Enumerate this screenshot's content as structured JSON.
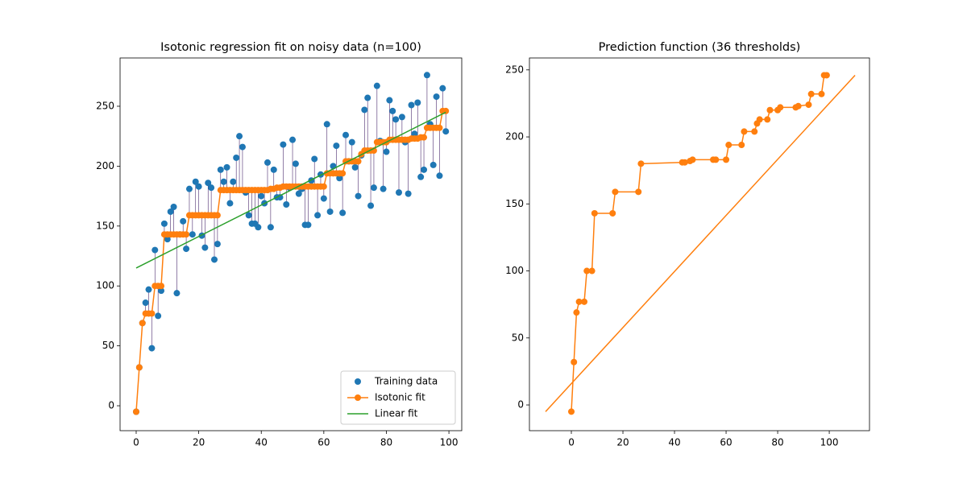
{
  "chart_data": [
    {
      "type": "scatter",
      "title": "Isotonic regression fit on noisy data (n=100)",
      "x": [
        0,
        1,
        2,
        3,
        4,
        5,
        6,
        7,
        8,
        9,
        10,
        11,
        12,
        13,
        14,
        15,
        16,
        17,
        18,
        19,
        20,
        21,
        22,
        23,
        24,
        25,
        26,
        27,
        28,
        29,
        30,
        31,
        32,
        33,
        34,
        35,
        36,
        37,
        38,
        39,
        40,
        41,
        42,
        43,
        44,
        45,
        46,
        47,
        48,
        49,
        50,
        51,
        52,
        53,
        54,
        55,
        56,
        57,
        58,
        59,
        60,
        61,
        62,
        63,
        64,
        65,
        66,
        67,
        68,
        69,
        70,
        71,
        72,
        73,
        74,
        75,
        76,
        77,
        78,
        79,
        80,
        81,
        82,
        83,
        84,
        85,
        86,
        87,
        88,
        89,
        90,
        91,
        92,
        93,
        94,
        95,
        96,
        97,
        98,
        99
      ],
      "series": [
        {
          "name": "Training data",
          "color": "#1f77b4",
          "values": [
            -5,
            32,
            69,
            86,
            97,
            48,
            130,
            75,
            96,
            152,
            139,
            162,
            166,
            94,
            143,
            154,
            131,
            181,
            143,
            187,
            183,
            142,
            132,
            186,
            182,
            122,
            135,
            197,
            187,
            199,
            169,
            187,
            207,
            225,
            216,
            178,
            159,
            152,
            152,
            149,
            175,
            169,
            203,
            149,
            197,
            174,
            174,
            218,
            168,
            182,
            222,
            202,
            177,
            181,
            151,
            151,
            188,
            206,
            159,
            193,
            173,
            235,
            162,
            200,
            217,
            190,
            161,
            226,
            204,
            220,
            199,
            175,
            209,
            247,
            257,
            167,
            182,
            267,
            221,
            181,
            212,
            255,
            246,
            239,
            178,
            241,
            220,
            177,
            251,
            227,
            253,
            191,
            197,
            276,
            235,
            201,
            258,
            192,
            265,
            229
          ]
        },
        {
          "name": "Isotonic fit",
          "color": "#ff7f0e",
          "values": [
            -5,
            32,
            69,
            77,
            77,
            77,
            100,
            100,
            100,
            143,
            143,
            143,
            143,
            143,
            143,
            143,
            143,
            159,
            159,
            159,
            159,
            159,
            159,
            159,
            159,
            159,
            159,
            180,
            180,
            180,
            180,
            180,
            180,
            180,
            180,
            180,
            180,
            180,
            180,
            180,
            180,
            180,
            180,
            181,
            181,
            182,
            182,
            183,
            183,
            183,
            183,
            183,
            183,
            183,
            183,
            183,
            183,
            183,
            183,
            183,
            183,
            194,
            194,
            194,
            194,
            194,
            194,
            204,
            204,
            204,
            204,
            204,
            210,
            213,
            213,
            213,
            213,
            220,
            220,
            220,
            220,
            222,
            222,
            222,
            222,
            222,
            222,
            222,
            223,
            223,
            223,
            224,
            224,
            232,
            232,
            232,
            232,
            232,
            246,
            246
          ]
        }
      ],
      "linear_fit": {
        "name": "Linear fit",
        "color": "#2ca02c",
        "x": [
          0,
          99
        ],
        "values": [
          115,
          245
        ]
      },
      "stem_color": "#4b2a6e",
      "xlim": [
        -5.15,
        104.1
      ],
      "ylim": [
        -20.8,
        290.3
      ],
      "xticks": [
        0,
        20,
        40,
        60,
        80,
        100
      ],
      "yticks": [
        0,
        50,
        100,
        150,
        200,
        250
      ],
      "legend": "lower right"
    },
    {
      "type": "line",
      "title": "Prediction function (36 thresholds)",
      "x": [
        0,
        1,
        2,
        3,
        5,
        6,
        8,
        9,
        16,
        17,
        26,
        27,
        43,
        44,
        46,
        47,
        55,
        56,
        60,
        61,
        66,
        67,
        71,
        72,
        73,
        76,
        77,
        80,
        81,
        87,
        88,
        92,
        93,
        97,
        98,
        99
      ],
      "series": [
        {
          "color": "#ff7f0e",
          "values": [
            -5,
            32,
            69,
            77,
            77,
            100,
            100,
            143,
            143,
            159,
            159,
            180,
            181,
            181,
            182,
            183,
            183,
            183,
            183,
            194,
            194,
            204,
            204,
            210,
            213,
            213,
            220,
            220,
            222,
            222,
            223,
            224,
            232,
            232,
            246,
            246
          ]
        }
      ],
      "extension": {
        "x": [
          -10,
          110
        ],
        "values": [
          -5,
          246
        ]
      },
      "xlim": [
        -16.25,
        115.6
      ],
      "ylim": [
        -19.2,
        258.9
      ],
      "xticks": [
        0,
        20,
        40,
        60,
        80,
        100
      ],
      "yticks": [
        0,
        50,
        100,
        150,
        200,
        250
      ]
    }
  ]
}
